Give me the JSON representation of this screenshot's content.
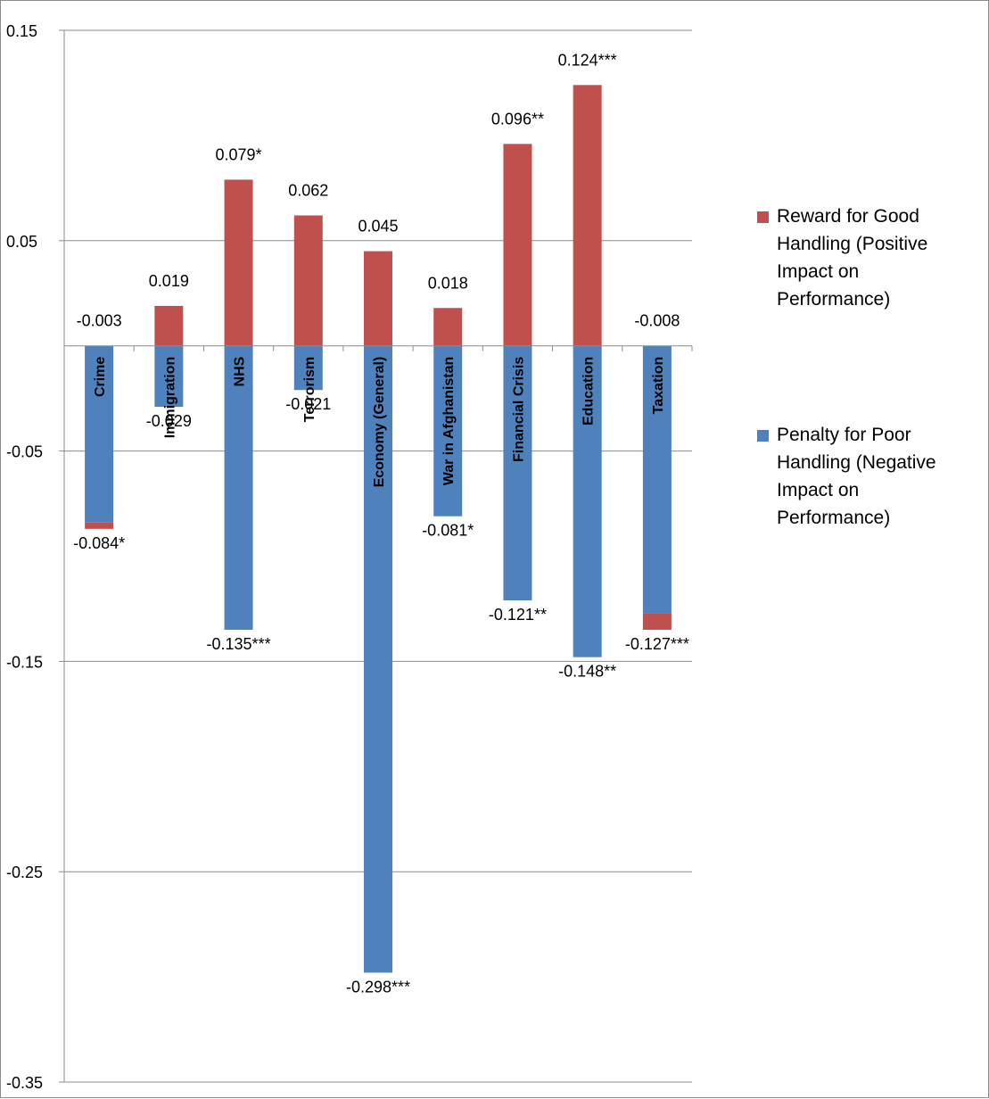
{
  "chart_data": {
    "type": "bar",
    "ylim": [
      -0.35,
      0.15
    ],
    "yticks": [
      "0.15",
      "0.05",
      "-0.05",
      "-0.15",
      "-0.25",
      "-0.35"
    ],
    "ytick_values": [
      0.15,
      0.05,
      -0.05,
      -0.15,
      -0.25,
      -0.35
    ],
    "grid": true,
    "legend_position": "right",
    "categories": [
      "Crime",
      "Immigration",
      "NHS",
      "Terrorism",
      "Economy (General)",
      "War in Afghanistan",
      "Financial Crisis",
      "Education",
      "Taxation"
    ],
    "series": [
      {
        "name": "Reward for Good Handling (Positive Impact on Performance)",
        "color": "#c0504d",
        "values": [
          -0.003,
          0.019,
          0.079,
          0.062,
          0.045,
          0.018,
          0.096,
          0.124,
          -0.008
        ],
        "labels": [
          "-0.003",
          "0.019",
          "0.079*",
          "0.062",
          "0.045",
          "0.018",
          "0.096**",
          "0.124***",
          "-0.008"
        ]
      },
      {
        "name": "Penalty for Poor Handling (Negative Impact on Performance)",
        "color": "#4f81bd",
        "values": [
          -0.084,
          -0.029,
          -0.135,
          -0.021,
          -0.298,
          -0.081,
          -0.121,
          -0.148,
          -0.127
        ],
        "labels": [
          "-0.084*",
          "-0.029",
          "-0.135***",
          "-0.021",
          "-0.298***",
          "-0.081*",
          "-0.121**",
          "-0.148**",
          "-0.127***"
        ]
      }
    ]
  },
  "legend": {
    "reward_lines": [
      "Reward for Good",
      "Handling (Positive",
      "Impact on",
      "Performance)"
    ],
    "penalty_lines": [
      "Penalty for Poor",
      "Handling (Negative",
      "Impact on",
      "Performance)"
    ]
  }
}
